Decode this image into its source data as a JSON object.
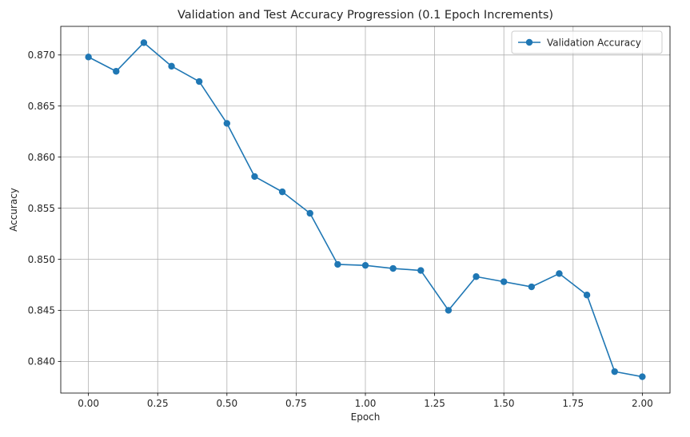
{
  "chart_data": {
    "type": "line",
    "title": "Validation and Test Accuracy Progression (0.1 Epoch Increments)",
    "xlabel": "Epoch",
    "ylabel": "Accuracy",
    "xlim": [
      -0.1,
      2.1
    ],
    "ylim": [
      0.8369,
      0.8728
    ],
    "xticks": [
      0.0,
      0.25,
      0.5,
      0.75,
      1.0,
      1.25,
      1.5,
      1.75,
      2.0
    ],
    "xtick_labels": [
      "0.00",
      "0.25",
      "0.50",
      "0.75",
      "1.00",
      "1.25",
      "1.50",
      "1.75",
      "2.00"
    ],
    "yticks": [
      0.84,
      0.845,
      0.85,
      0.855,
      0.86,
      0.865,
      0.87
    ],
    "ytick_labels": [
      "0.840",
      "0.845",
      "0.850",
      "0.855",
      "0.860",
      "0.865",
      "0.870"
    ],
    "grid": true,
    "legend_position": "top-right",
    "series": [
      {
        "name": "Validation Accuracy",
        "color": "#1f77b4",
        "marker": "circle",
        "x": [
          0.0,
          0.1,
          0.2,
          0.3,
          0.4,
          0.5,
          0.6,
          0.7,
          0.8,
          0.9,
          1.0,
          1.1,
          1.2,
          1.3,
          1.4,
          1.5,
          1.6,
          1.7,
          1.8,
          1.9,
          2.0
        ],
        "y": [
          0.8698,
          0.8684,
          0.8712,
          0.8689,
          0.8674,
          0.8633,
          0.8581,
          0.8566,
          0.8545,
          0.8495,
          0.8494,
          0.8491,
          0.8489,
          0.845,
          0.8483,
          0.8478,
          0.8473,
          0.8486,
          0.8465,
          0.839,
          0.8385
        ]
      }
    ]
  }
}
